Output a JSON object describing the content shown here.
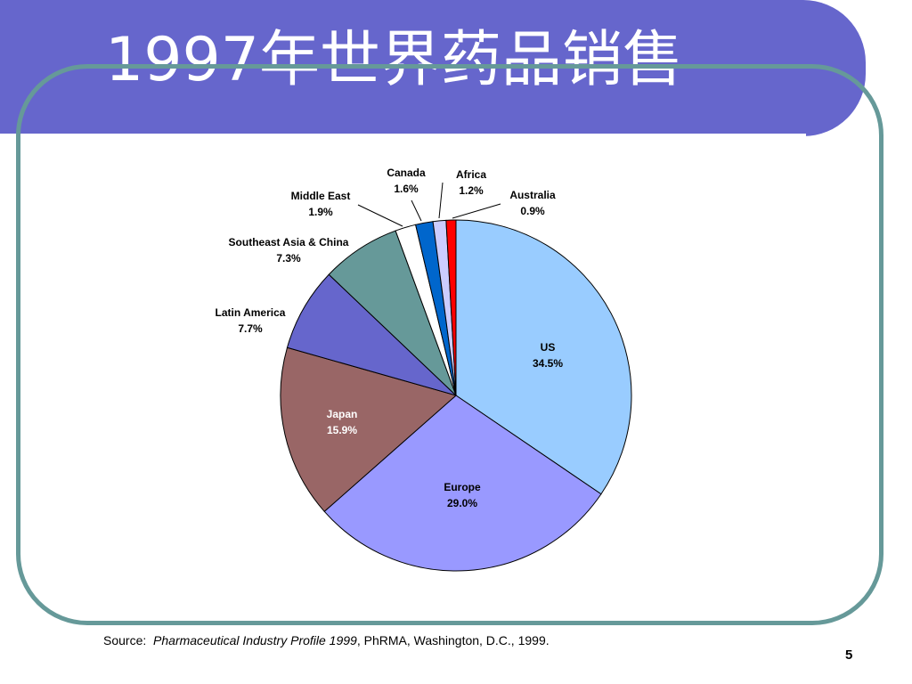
{
  "slide": {
    "title": "1997年世界药品销售",
    "source_prefix": "Source:",
    "source_title": "Pharmaceutical Industry Profile 1999",
    "source_rest": ", PhRMA, Washington, D.C., 1999.",
    "page_number": "5"
  },
  "colors": {
    "title_band": "#6666cc",
    "frame": "#669999"
  },
  "chart_data": {
    "type": "pie",
    "title": "",
    "start_at": "12 o'clock, clockwise",
    "slices": [
      {
        "name": "US",
        "value": 34.5,
        "label": "34.5%",
        "color": "#99ccff"
      },
      {
        "name": "Europe",
        "value": 29.0,
        "label": "29.0%",
        "color": "#9999ff"
      },
      {
        "name": "Japan",
        "value": 15.9,
        "label": "15.9%",
        "color": "#996666",
        "label_color": "#ffffff"
      },
      {
        "name": "Latin America",
        "value": 7.7,
        "label": "7.7%",
        "color": "#6666cc"
      },
      {
        "name": "Southeast Asia & China",
        "value": 7.3,
        "label": "7.3%",
        "color": "#669999"
      },
      {
        "name": "Middle East",
        "value": 1.9,
        "label": "1.9%",
        "color": "#ffffff"
      },
      {
        "name": "Canada",
        "value": 1.6,
        "label": "1.6%",
        "color": "#0066cc"
      },
      {
        "name": "Africa",
        "value": 1.2,
        "label": "1.2%",
        "color": "#ccccff"
      },
      {
        "name": "Australia",
        "value": 0.9,
        "label": "0.9%",
        "color": "#ff0000"
      }
    ]
  }
}
